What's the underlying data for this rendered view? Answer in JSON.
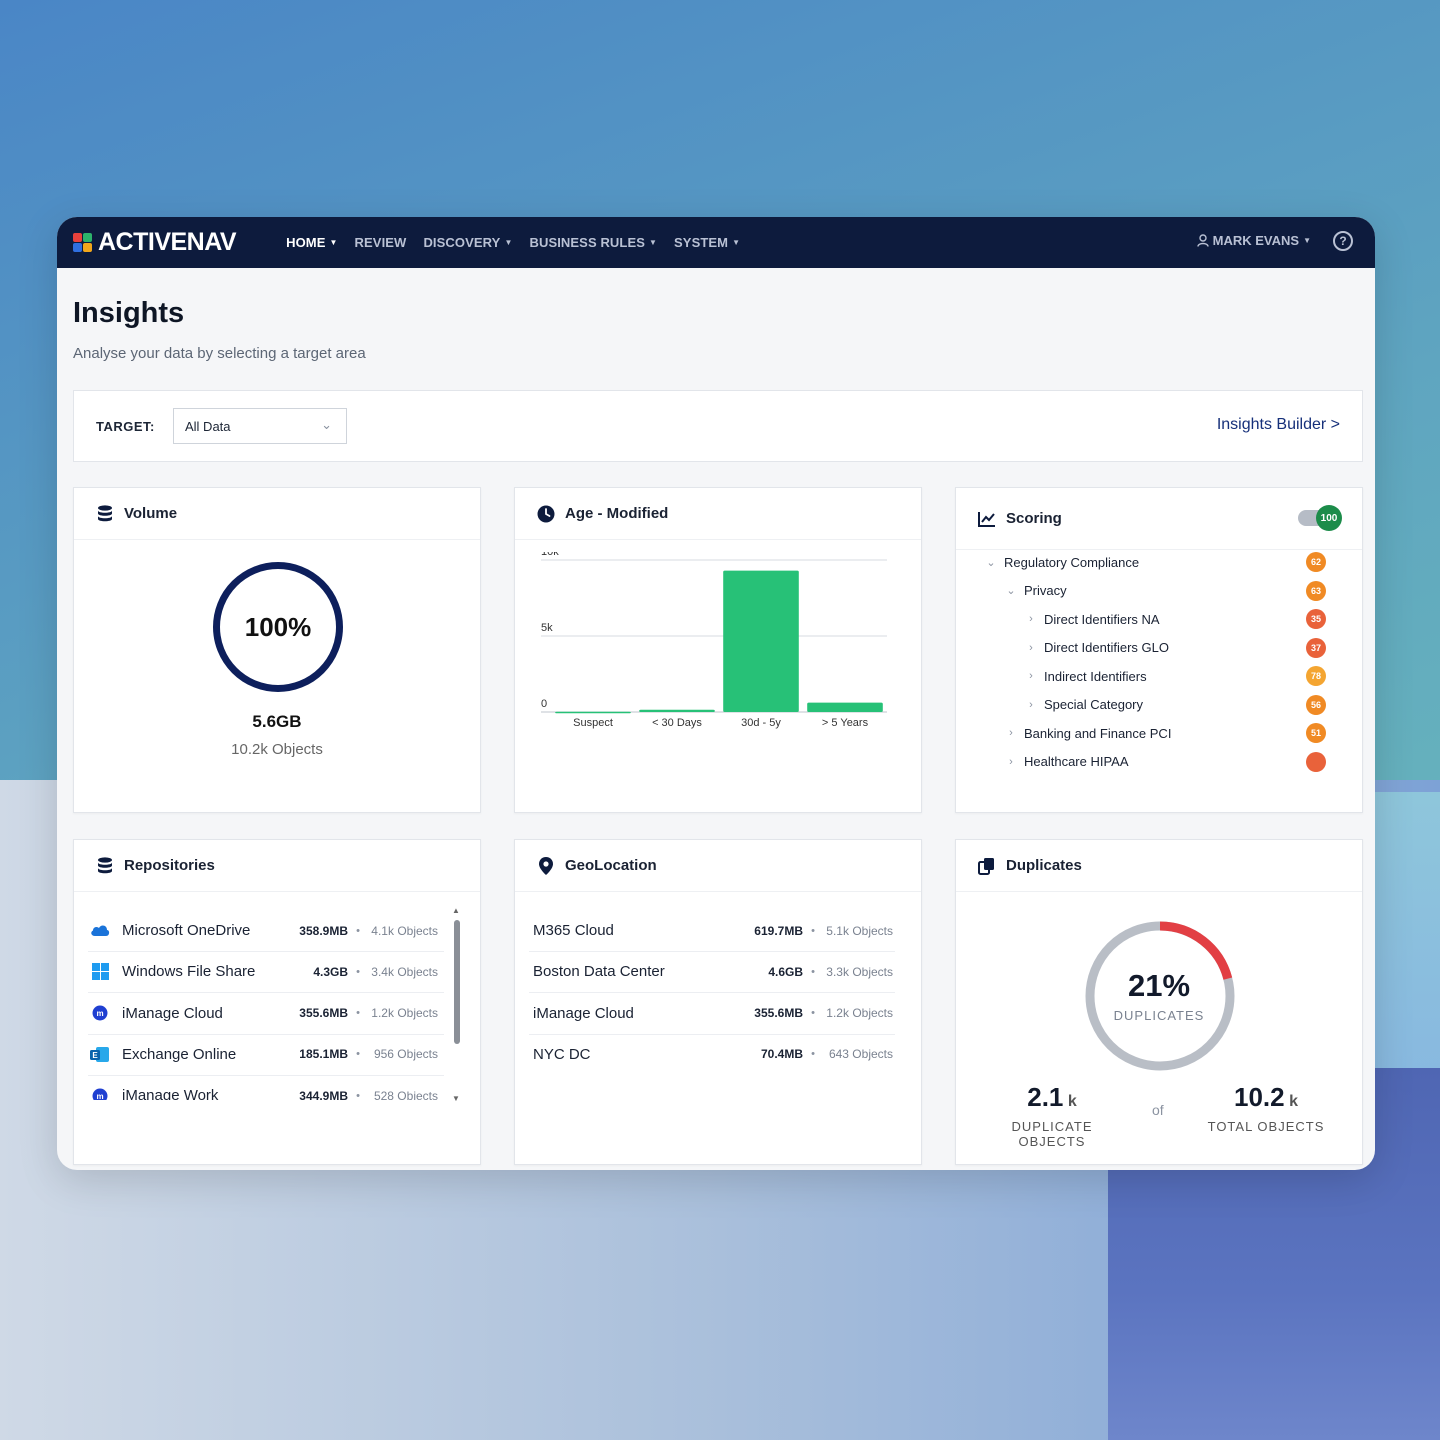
{
  "brand": {
    "name": "ACTIVENAV",
    "colors": [
      "#e8413c",
      "#2db36b",
      "#2f6fe0",
      "#f2a71b"
    ]
  },
  "nav": {
    "items": [
      {
        "label": "HOME",
        "has_caret": true,
        "active": true
      },
      {
        "label": "REVIEW",
        "has_caret": false,
        "active": false
      },
      {
        "label": "DISCOVERY",
        "has_caret": true,
        "active": false
      },
      {
        "label": "BUSINESS RULES",
        "has_caret": true,
        "active": false
      },
      {
        "label": "SYSTEM",
        "has_caret": true,
        "active": false
      }
    ],
    "user": "MARK EVANS",
    "help_icon": "question-circle-icon"
  },
  "page": {
    "title": "Insights",
    "subtitle": "Analyse your data by selecting a target area"
  },
  "target": {
    "label": "TARGET:",
    "value": "All Data",
    "builder_link": "Insights Builder >"
  },
  "volume": {
    "title": "Volume",
    "percent": "100%",
    "size": "5.6GB",
    "objects": "10.2k Objects"
  },
  "age": {
    "title": "Age - Modified"
  },
  "chart_data": {
    "type": "bar",
    "title": "Age - Modified",
    "categories": [
      "Suspect",
      "< 30 Days",
      "30d - 5y",
      "> 5 Years"
    ],
    "values": [
      20,
      150,
      9300,
      620
    ],
    "ylim": [
      0,
      10000
    ],
    "yticks": [
      {
        "value": 0,
        "label": "0"
      },
      {
        "value": 5000,
        "label": "5k"
      },
      {
        "value": 10000,
        "label": "10k"
      }
    ],
    "color": "#27c177",
    "grid": true
  },
  "scoring": {
    "title": "Scoring",
    "toggle_value": "100",
    "toggle_on": true,
    "items": [
      {
        "label": "Regulatory Compliance",
        "level": 0,
        "expanded": true,
        "score": "62",
        "color": "#f08a24"
      },
      {
        "label": "Privacy",
        "level": 1,
        "expanded": true,
        "score": "63",
        "color": "#f08a24"
      },
      {
        "label": "Direct Identifiers NA",
        "level": 2,
        "expanded": false,
        "score": "35",
        "color": "#e9623a"
      },
      {
        "label": "Direct Identifiers GLO",
        "level": 2,
        "expanded": false,
        "score": "37",
        "color": "#e9623a"
      },
      {
        "label": "Indirect Identifiers",
        "level": 2,
        "expanded": false,
        "score": "78",
        "color": "#f4a531"
      },
      {
        "label": "Special Category",
        "level": 2,
        "expanded": false,
        "score": "56",
        "color": "#f08a24"
      },
      {
        "label": "Banking and Finance PCI",
        "level": 1,
        "expanded": false,
        "score": "51",
        "color": "#f08a24"
      },
      {
        "label": "Healthcare HIPAA",
        "level": 1,
        "expanded": false,
        "score": "",
        "color": "#e9623a"
      }
    ]
  },
  "repositories": {
    "title": "Repositories",
    "items": [
      {
        "name": "Microsoft OneDrive",
        "size": "358.9MB",
        "objects": "4.1k Objects",
        "icon": "onedrive-icon"
      },
      {
        "name": "Windows File Share",
        "size": "4.3GB",
        "objects": "3.4k Objects",
        "icon": "windows-icon"
      },
      {
        "name": "iManage Cloud",
        "size": "355.6MB",
        "objects": "1.2k Objects",
        "icon": "imanage-icon"
      },
      {
        "name": "Exchange Online",
        "size": "185.1MB",
        "objects": "956 Objects",
        "icon": "exchange-icon"
      },
      {
        "name": "iManage Work",
        "size": "344.9MB",
        "objects": "528 Objects",
        "icon": "imanage-icon"
      }
    ]
  },
  "geolocation": {
    "title": "GeoLocation",
    "items": [
      {
        "name": "M365 Cloud",
        "size": "619.7MB",
        "objects": "5.1k Objects"
      },
      {
        "name": "Boston Data Center",
        "size": "4.6GB",
        "objects": "3.3k Objects"
      },
      {
        "name": "iManage Cloud",
        "size": "355.6MB",
        "objects": "1.2k Objects"
      },
      {
        "name": "NYC DC",
        "size": "70.4MB",
        "objects": "643 Objects"
      }
    ]
  },
  "duplicates": {
    "title": "Duplicates",
    "percent": "21%",
    "percent_value": 0.21,
    "label": "DUPLICATES",
    "dup_value": "2.1",
    "dup_unit": "k",
    "dup_caption": "DUPLICATE OBJECTS",
    "of_text": "of",
    "total_value": "10.2",
    "total_unit": "k",
    "total_caption": "TOTAL OBJECTS",
    "colors": {
      "dup": "#e23f44",
      "rest": "#b9bec6"
    }
  }
}
